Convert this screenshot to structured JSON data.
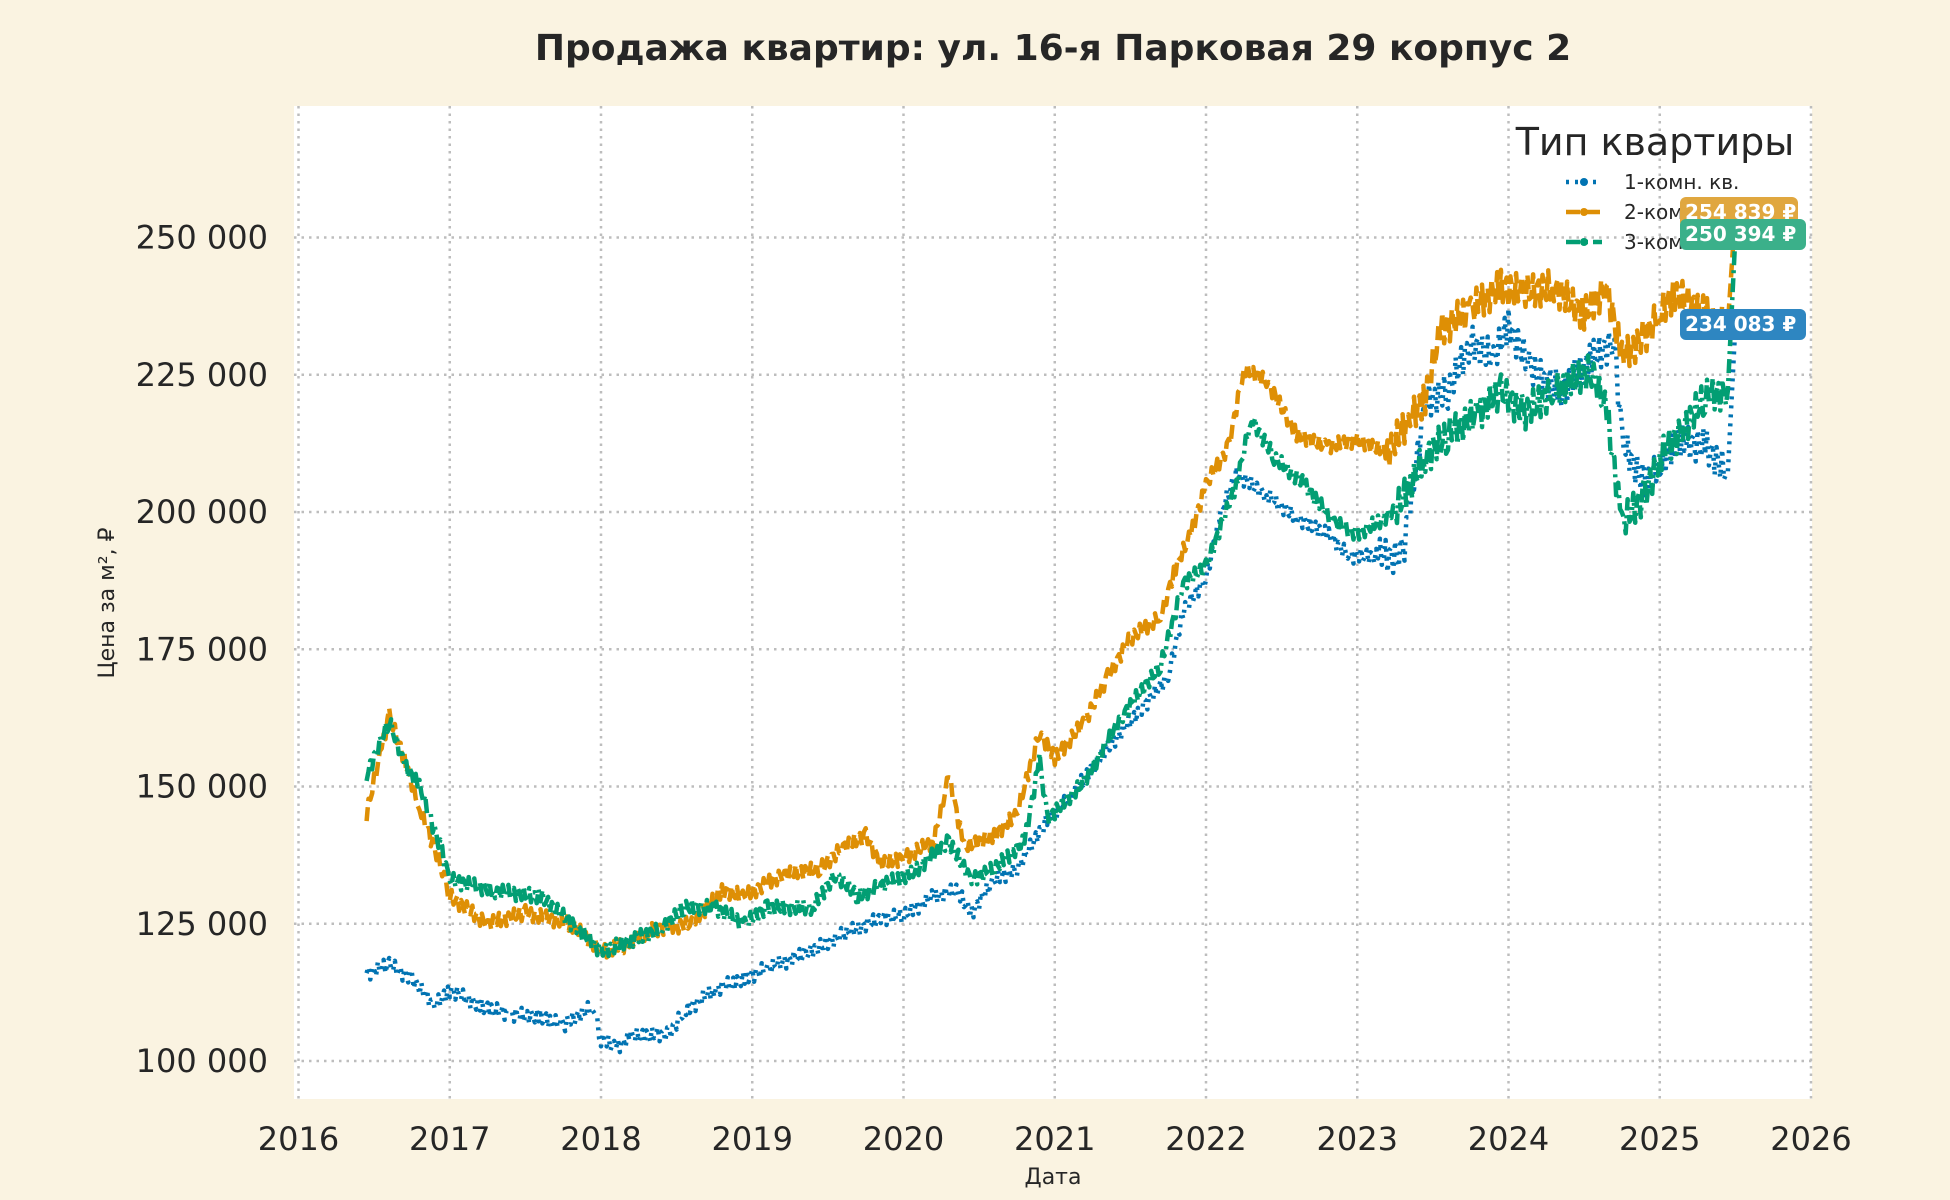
{
  "chart_data": {
    "type": "line",
    "title": "Продажа квартир: ул. 16-я Парковая 29 корпус 2",
    "xlabel": "Дата",
    "ylabel": "Цена за м², ₽",
    "xlim": [
      2016,
      2026
    ],
    "ylim": [
      93000,
      268000
    ],
    "x_ticks": [
      "2016",
      "2017",
      "2018",
      "2019",
      "2020",
      "2021",
      "2022",
      "2023",
      "2024",
      "2025",
      "2026"
    ],
    "y_ticks": [
      100000,
      125000,
      150000,
      175000,
      200000,
      225000,
      250000
    ],
    "y_tick_labels": [
      "100 000",
      "125 000",
      "150 000",
      "175 000",
      "200 000",
      "225 000",
      "250 000"
    ],
    "grid": true,
    "legend": {
      "title": "Тип квартиры",
      "position": "upper right"
    },
    "series": [
      {
        "name": "1-комн. кв.",
        "color": "#0173b2",
        "style": "dotted",
        "marker": "triangle",
        "last_value_label": "234 083 ₽",
        "label_color": "#2e86c1",
        "x": [
          2016.45,
          2016.6,
          2016.75,
          2016.9,
          2017.0,
          2017.2,
          2017.4,
          2017.6,
          2017.75,
          2017.95,
          2018.0,
          2018.1,
          2018.2,
          2018.45,
          2018.55,
          2018.75,
          2018.95,
          2019.1,
          2019.35,
          2019.6,
          2019.85,
          2020.0,
          2020.2,
          2020.35,
          2020.45,
          2020.6,
          2020.75,
          2020.95,
          2021.1,
          2021.35,
          2021.6,
          2021.75,
          2021.85,
          2022.0,
          2022.1,
          2022.2,
          2022.4,
          2022.6,
          2022.8,
          2022.95,
          2023.15,
          2023.3,
          2023.45,
          2023.6,
          2023.75,
          2023.9,
          2024.0,
          2024.15,
          2024.35,
          2024.55,
          2024.7,
          2024.75,
          2024.9,
          2025.0,
          2025.1,
          2025.3,
          2025.45,
          2025.5
        ],
        "values": [
          116000,
          117500,
          115000,
          110000,
          113000,
          110000,
          108500,
          108000,
          106500,
          110000,
          104000,
          102500,
          104500,
          105000,
          109000,
          113000,
          115000,
          117000,
          119500,
          123000,
          126000,
          126500,
          130000,
          131000,
          127000,
          133000,
          135000,
          144000,
          148000,
          157000,
          165000,
          170000,
          182000,
          188000,
          200000,
          207000,
          203000,
          199000,
          196000,
          192000,
          192000,
          192000,
          220000,
          222000,
          231000,
          228000,
          234000,
          226000,
          222000,
          228000,
          231000,
          213000,
          205000,
          208000,
          213000,
          212000,
          207000,
          234083
        ]
      },
      {
        "name": "2-комн. кв.",
        "color": "#de8f05",
        "style": "dashed",
        "marker": "circle",
        "last_value_label": "254 839 ₽",
        "label_color": "#e0a73f",
        "x": [
          2016.45,
          2016.55,
          2016.6,
          2016.7,
          2016.8,
          2016.95,
          2017.0,
          2017.25,
          2017.5,
          2017.8,
          2018.0,
          2018.15,
          2018.35,
          2018.6,
          2018.8,
          2018.95,
          2019.2,
          2019.45,
          2019.6,
          2019.75,
          2019.85,
          2020.0,
          2020.2,
          2020.3,
          2020.4,
          2020.6,
          2020.75,
          2020.9,
          2021.0,
          2021.2,
          2021.35,
          2021.5,
          2021.7,
          2021.8,
          2021.9,
          2022.0,
          2022.15,
          2022.25,
          2022.4,
          2022.6,
          2022.8,
          2023.0,
          2023.2,
          2023.35,
          2023.45,
          2023.55,
          2023.75,
          2023.95,
          2024.1,
          2024.3,
          2024.5,
          2024.65,
          2024.75,
          2024.9,
          2025.0,
          2025.1,
          2025.3,
          2025.45,
          2025.5
        ],
        "values": [
          145000,
          157000,
          163000,
          155000,
          146000,
          135000,
          130000,
          125000,
          127000,
          125000,
          120000,
          121000,
          124000,
          125000,
          131000,
          130000,
          134000,
          135000,
          139000,
          141000,
          136000,
          137000,
          140000,
          152000,
          139000,
          141000,
          145000,
          160000,
          155000,
          162000,
          170000,
          177000,
          181000,
          190000,
          196000,
          205000,
          212000,
          226000,
          224000,
          214000,
          212000,
          213000,
          211000,
          217000,
          221000,
          233000,
          237000,
          241000,
          240000,
          241000,
          236000,
          241000,
          228000,
          232000,
          236000,
          240000,
          236000,
          234000,
          254839
        ]
      },
      {
        "name": "3-комн. кв.",
        "color": "#029e73",
        "style": "dashdot",
        "marker": "pentagon",
        "last_value_label": "250 394 ₽",
        "label_color": "#3bb08a",
        "x": [
          2016.45,
          2016.6,
          2016.7,
          2016.8,
          2016.95,
          2017.0,
          2017.3,
          2017.6,
          2017.85,
          2018.0,
          2018.2,
          2018.4,
          2018.55,
          2018.75,
          2018.95,
          2019.1,
          2019.4,
          2019.55,
          2019.7,
          2019.85,
          2020.05,
          2020.3,
          2020.45,
          2020.6,
          2020.8,
          2020.9,
          2020.95,
          2021.2,
          2021.45,
          2021.7,
          2021.85,
          2022.0,
          2022.2,
          2022.3,
          2022.45,
          2022.65,
          2022.85,
          2023.0,
          2023.25,
          2023.45,
          2023.6,
          2023.8,
          2023.95,
          2024.1,
          2024.3,
          2024.55,
          2024.65,
          2024.75,
          2024.9,
          2025.0,
          2025.15,
          2025.3,
          2025.45,
          2025.5
        ],
        "values": [
          152000,
          162000,
          154000,
          150000,
          138000,
          133000,
          131000,
          130000,
          124000,
          120000,
          122000,
          124000,
          128000,
          128000,
          125000,
          128000,
          128000,
          134000,
          130000,
          132000,
          134000,
          140000,
          133000,
          135000,
          140000,
          155000,
          144000,
          151000,
          163000,
          172000,
          187000,
          190000,
          205000,
          217000,
          210000,
          205000,
          198000,
          196000,
          200000,
          210000,
          214000,
          218000,
          222000,
          218000,
          222000,
          226000,
          218000,
          198000,
          203000,
          210000,
          215000,
          221000,
          222000,
          250394
        ]
      }
    ]
  }
}
